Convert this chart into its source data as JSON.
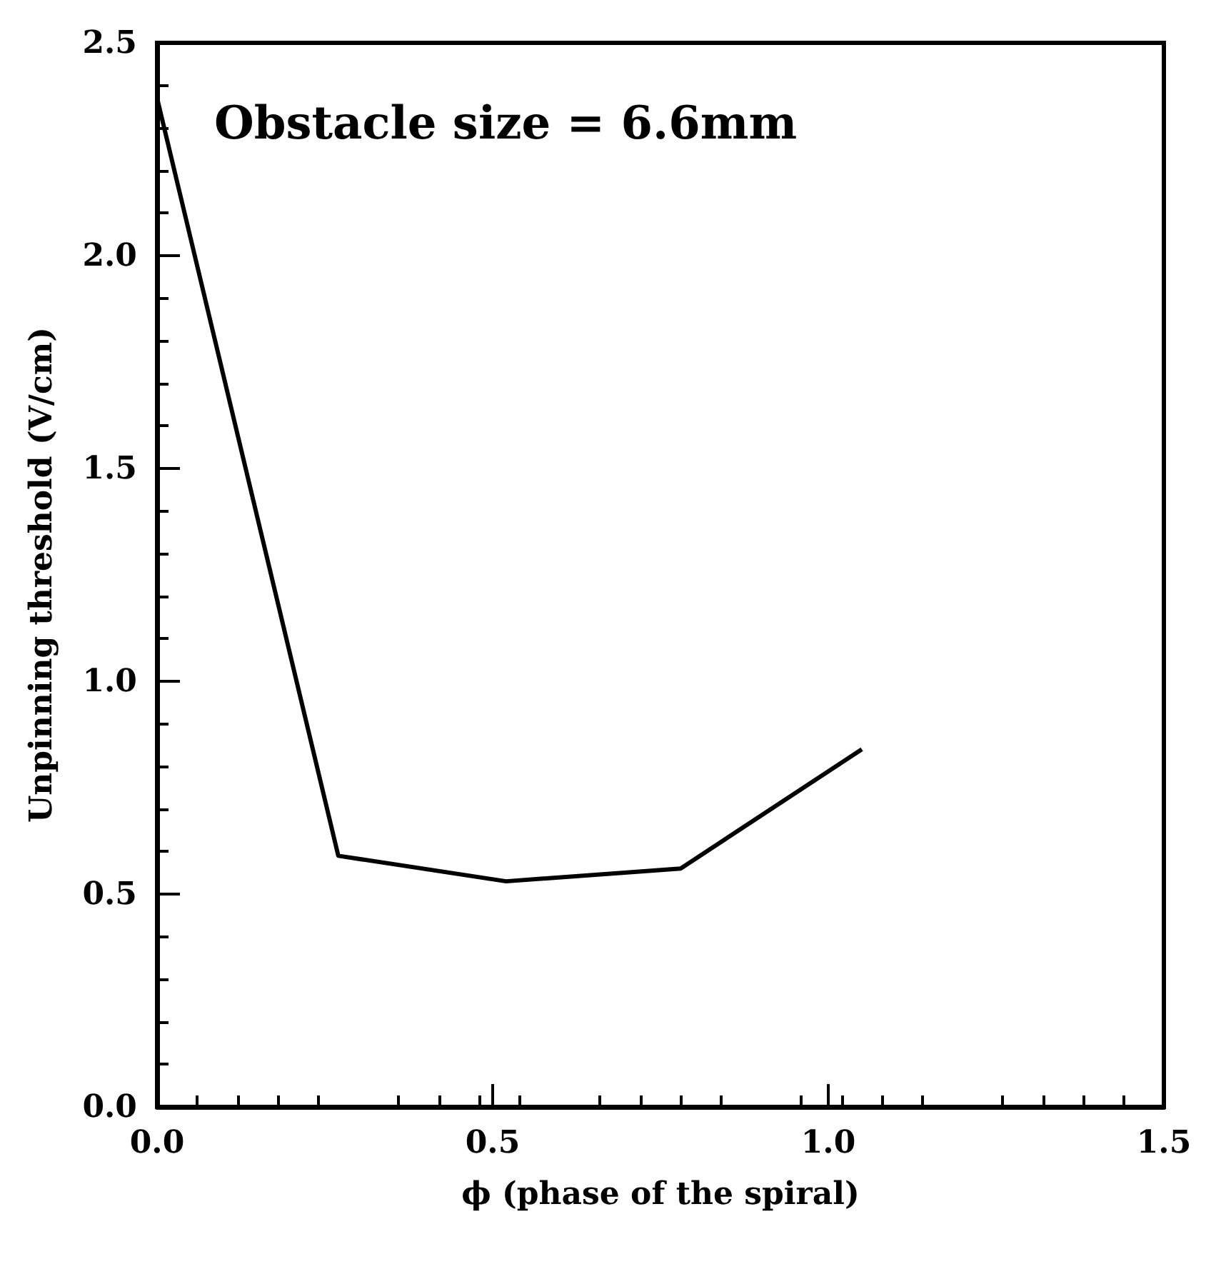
{
  "chart_data": {
    "type": "line",
    "xlabel": "ϕ (phase of the spiral)",
    "ylabel": "Unpinning threshold (V/cm)",
    "annotations": [
      "Obstacle size = 6.6mm"
    ],
    "x": [
      0,
      0.27,
      0.52,
      0.78,
      1.05
    ],
    "series": [
      {
        "color": "#000000",
        "values": [
          2.37,
          0.59,
          0.53,
          0.56,
          0.84
        ]
      }
    ],
    "xlim": [
      0,
      1.5
    ],
    "xticks": [
      {
        "value": 0,
        "label": "0.0"
      },
      0.5,
      {
        "value": 1,
        "label": "1.0"
      },
      1.5
    ],
    "ylim": [
      0,
      2.5
    ],
    "yticks": [
      {
        "value": 0,
        "label": "0.0"
      },
      0.5,
      {
        "value": 1,
        "label": "1.0"
      },
      1.5,
      {
        "value": 2,
        "label": "2.0"
      },
      2.5
    ],
    "marker": "none",
    "line_style": "solid"
  }
}
